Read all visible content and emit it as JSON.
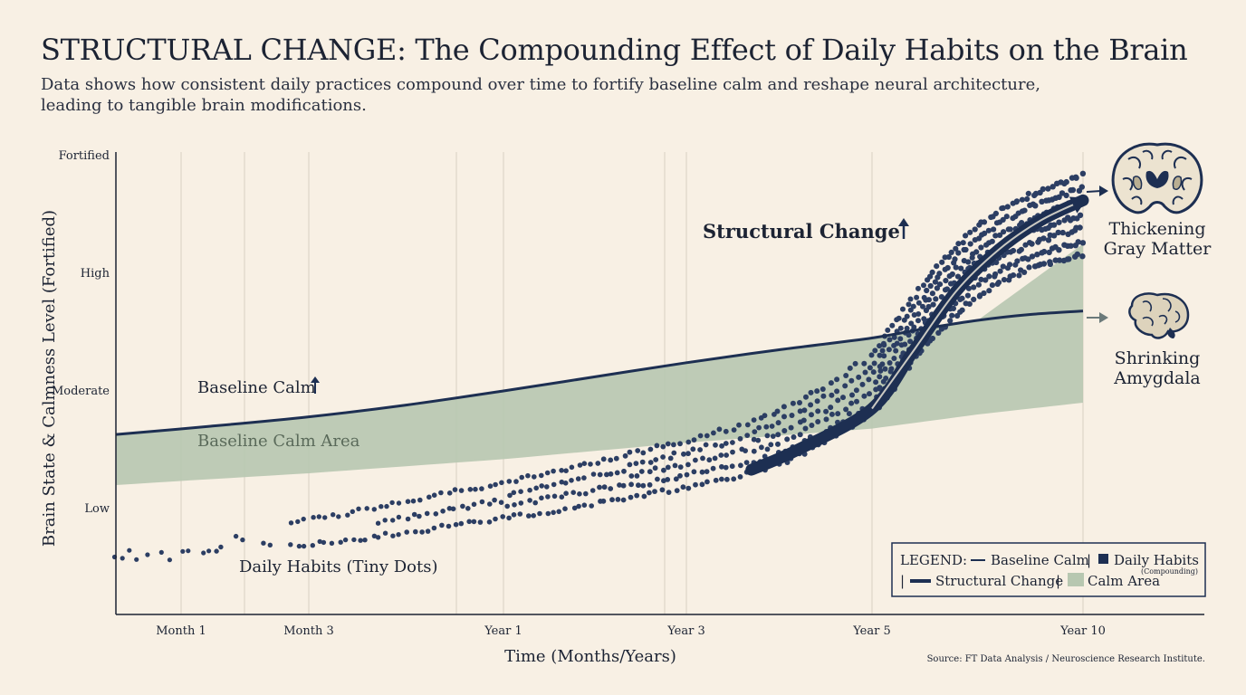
{
  "title": "STRUCTURAL CHANGE: The Compounding Effect of Daily Habits on the Brain",
  "subtitle": "Data shows how consistent daily practices compound over time to fortify baseline calm and reshape neural architecture, leading to tangible brain modifications.",
  "colors": {
    "navy": "#1d2f52",
    "dots": "#2c3e63",
    "calm_area": "#b7c7b0",
    "background": "#f8f0e4",
    "grid": "#d8d0c2",
    "arrow_gray": "#6b7a7a"
  },
  "chart_data": {
    "type": "line",
    "xlabel": "Time (Months/Years)",
    "ylabel": "Brain State & Calmness Level (Fortified)",
    "x_ticks": [
      "Month 1",
      "Month 3",
      "Year 1",
      "Year 3",
      "Year 5",
      "Year 10"
    ],
    "y_ticks": [
      "Low",
      "Moderate",
      "High",
      "Fortified"
    ],
    "y_range": [
      0,
      4
    ],
    "grid": true,
    "legend_placement": "bottom-right",
    "series": [
      {
        "name": "Baseline Calm",
        "x": [
          0,
          0.5,
          1,
          1.5,
          2,
          2.5,
          3,
          3.5,
          4,
          4.5,
          5,
          5.5,
          6
        ],
        "values": [
          1.63,
          1.7,
          1.78,
          1.88,
          2.0,
          2.12,
          2.24,
          2.35,
          2.45,
          2.53,
          2.6,
          2.65,
          2.68
        ]
      },
      {
        "name": "Calm Area",
        "x": [
          0,
          1,
          2,
          3,
          4,
          5,
          6
        ],
        "lower": [
          1.2,
          1.3,
          1.42,
          1.56,
          1.68,
          1.8,
          1.9
        ],
        "upper": [
          1.63,
          1.78,
          2.0,
          2.24,
          2.45,
          2.6,
          3.25
        ]
      },
      {
        "name": "Structural Change",
        "x": [
          3.35,
          3.6,
          4.0,
          4.4,
          4.8,
          5.2,
          5.6,
          6.0
        ],
        "values": [
          1.33,
          1.5,
          1.85,
          2.35,
          2.85,
          3.2,
          3.45,
          3.62
        ]
      },
      {
        "name": "Daily Habits (Compounding)",
        "x": [
          0,
          0.25,
          0.5,
          0.75,
          1,
          1.25,
          1.5,
          1.75,
          2,
          2.25,
          2.5,
          2.75,
          3,
          3.25,
          3.5,
          3.75,
          4,
          4.25,
          4.5,
          4.75,
          5,
          5.25,
          5.5,
          5.75,
          6
        ],
        "values": [
          0.58,
          0.62,
          0.68,
          0.74,
          0.8,
          0.86,
          0.93,
          1.0,
          1.07,
          1.14,
          1.22,
          1.3,
          1.38,
          1.47,
          1.6,
          1.8,
          2.05,
          2.35,
          2.65,
          2.9,
          3.1,
          3.25,
          3.35,
          3.43,
          3.5
        ]
      }
    ]
  },
  "annotations": {
    "baseline_calm": "Baseline Calm",
    "baseline_calm_area": "Baseline Calm Area",
    "structural_change": "Structural Change",
    "daily_habits": "Daily Habits (Tiny Dots)",
    "up_arrow": "↑"
  },
  "brains": {
    "gray_matter": [
      "Thickening",
      "Gray Matter"
    ],
    "amygdala": [
      "Shrinking",
      "Amygdala"
    ]
  },
  "legend": {
    "prefix": "LEGEND:",
    "baseline": "Baseline Calm",
    "habits": "Daily Habits",
    "habits_sub": "(Compounding)",
    "structural": "Structural Change",
    "area": "Calm Area",
    "sep": "|"
  },
  "source": "Source: FT Data Analysis / Neuroscience Research Institute."
}
